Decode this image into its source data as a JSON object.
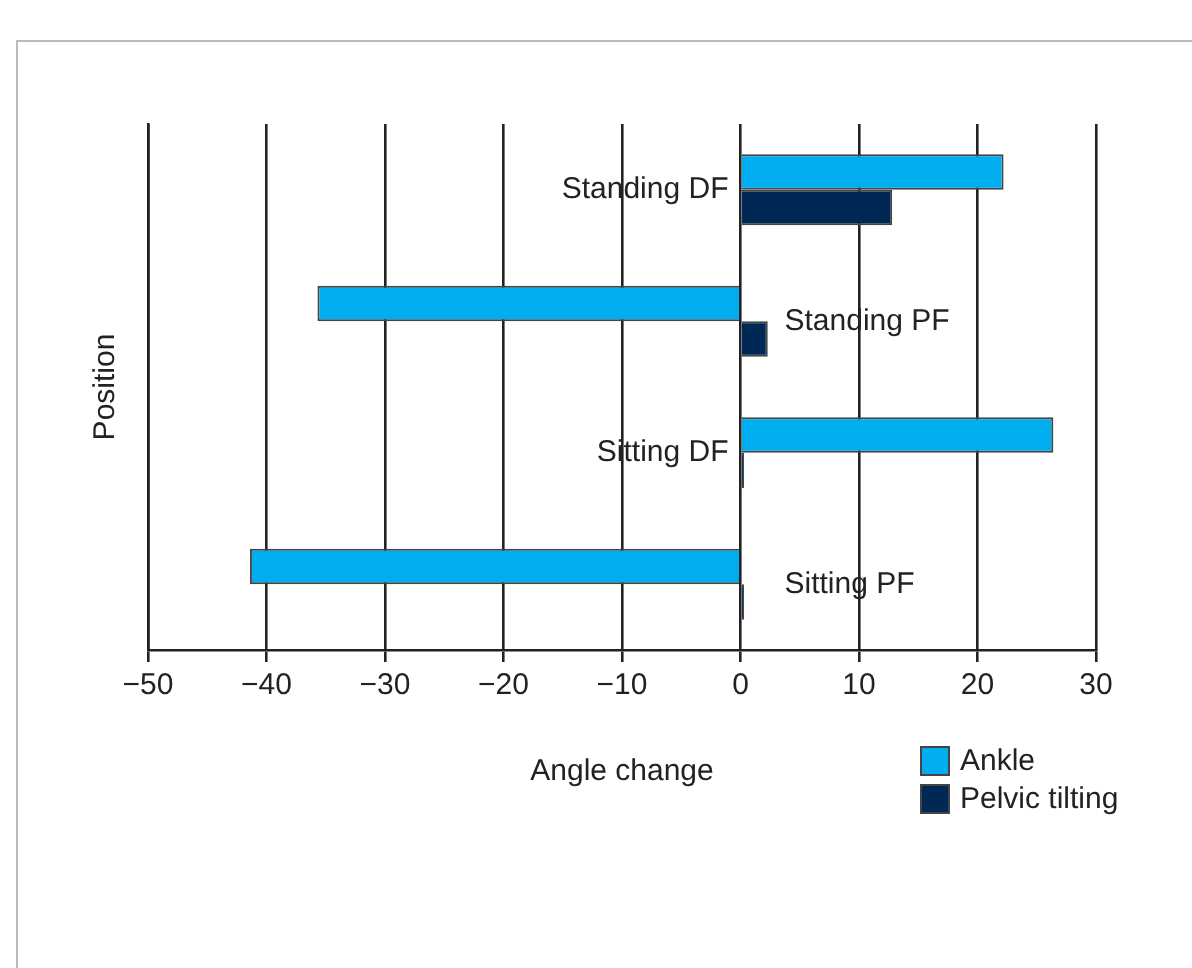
{
  "chart_data": {
    "type": "bar",
    "orientation": "horizontal",
    "xlabel": "Angle change",
    "ylabel": "Position",
    "categories": [
      "Standing DF",
      "Standing PF",
      "Sitting DF",
      "Sitting PF"
    ],
    "series": [
      {
        "name": "Ankle",
        "color": "#00aeef",
        "values": [
          22.2,
          -35.7,
          26.4,
          -41.4
        ]
      },
      {
        "name": "Pelvic tilting",
        "color": "#002855",
        "values": [
          12.8,
          2.3,
          0.3,
          0.3
        ]
      }
    ],
    "xlim": [
      -50,
      30
    ],
    "xticks": [
      -50,
      -40,
      -30,
      -20,
      -10,
      0,
      10,
      20,
      30
    ],
    "grid": "x",
    "legend": "bottom right"
  }
}
